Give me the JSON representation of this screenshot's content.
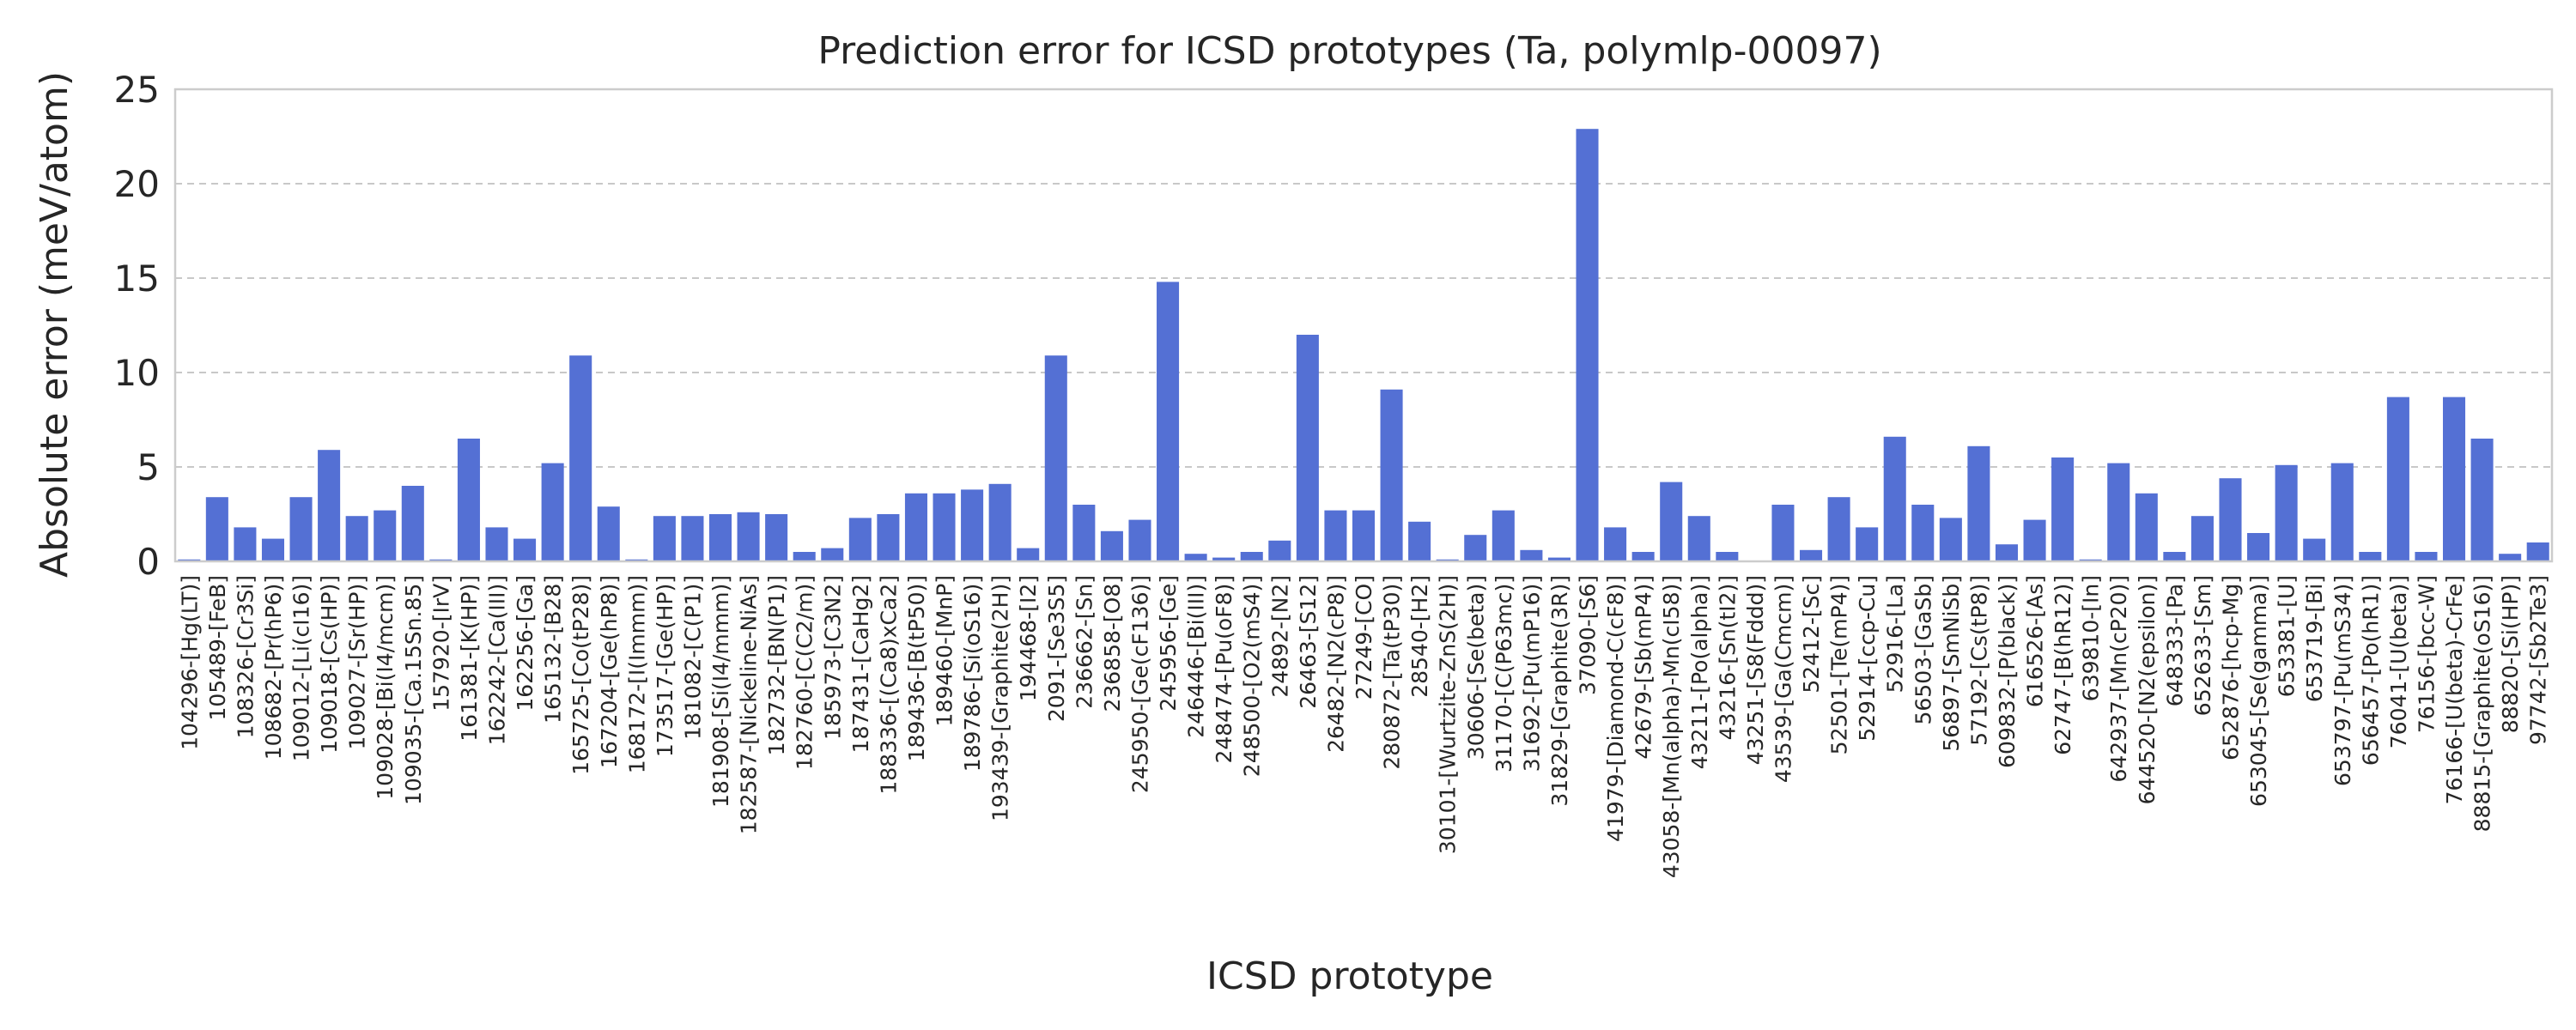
{
  "chart_data": {
    "type": "bar",
    "title": "Prediction error for ICSD prototypes (Ta, polymlp-00097)",
    "xlabel": "ICSD prototype",
    "ylabel": "Absolute error (meV/atom)",
    "ylim": [
      0,
      25
    ],
    "yticks": [
      0,
      5,
      10,
      15,
      20,
      25
    ],
    "grid": "y-dashed",
    "bar_color": "#5470d4",
    "grid_color": "#c8c8c8",
    "axes_color": "#cccccc",
    "text_color": "#262626",
    "categories": [
      "104296-[Hg(LT)]",
      "105489-[FeB]",
      "108326-[Cr3Si]",
      "108682-[Pr(hP6)]",
      "109012-[Li(cI16)]",
      "109018-[Cs(HP)]",
      "109027-[Sr(HP)]",
      "109028-[Bi(I4/mcm)]",
      "109035-[Ca.15Sn.85]",
      "157920-[IrV]",
      "161381-[K(HP)]",
      "162242-[Ca(III)]",
      "162256-[Ga]",
      "165132-[B28]",
      "165725-[Co(tP28)]",
      "167204-[Ge(hP8)]",
      "168172-[I(Immm)]",
      "173517-[Ge(HP)]",
      "181082-[C(P1)]",
      "181908-[Si(I4/mmm)]",
      "182587-[Nickeline-NiAs]",
      "182732-[BN(P1)]",
      "182760-[C(C2/m)]",
      "185973-[C3N2]",
      "187431-[CaHg2]",
      "188336-[(Ca8)xCa2]",
      "189436-[B(tP50)]",
      "189460-[MnP]",
      "189786-[Si(oS16)]",
      "193439-[Graphite(2H)]",
      "194468-[I2]",
      "2091-[Se3S5]",
      "236662-[Sn]",
      "236858-[O8]",
      "245950-[Ge(cF136)]",
      "245956-[Ge]",
      "246446-[Bi(III)]",
      "248474-[Pu(oF8)]",
      "248500-[O2(mS4)]",
      "24892-[N2]",
      "26463-[S12]",
      "26482-[N2(cP8)]",
      "27249-[CO]",
      "280872-[Ta(tP30)]",
      "28540-[H2]",
      "30101-[Wurtzite-ZnS(2H)]",
      "30606-[Se(beta)]",
      "31170-[C(P63mc)]",
      "31692-[Pu(mP16)]",
      "31829-[Graphite(3R)]",
      "37090-[S6]",
      "41979-[Diamond-C(cF8)]",
      "42679-[Sb(mP4)]",
      "43058-[Mn(alpha)-Mn(cI58)]",
      "43211-[Po(alpha)]",
      "43216-[Sn(tI2)]",
      "43251-[S8(Fddd)]",
      "43539-[Ga(Cmcm)]",
      "52412-[Sc]",
      "52501-[Te(mP4)]",
      "52914-[ccp-Cu]",
      "52916-[La]",
      "56503-[GaSb]",
      "56897-[SmNiSb]",
      "57192-[Cs(tP8)]",
      "609832-[P(black)]",
      "616526-[As]",
      "62747-[B(hR12)]",
      "639810-[In]",
      "642937-[Mn(cP20)]",
      "644520-[N2(epsilon)]",
      "648333-[Pa]",
      "652633-[Sm]",
      "652876-[hcp-Mg]",
      "653045-[Se(gamma)]",
      "653381-[U]",
      "653719-[Bi]",
      "653797-[Pu(mS34)]",
      "656457-[Po(hR1)]",
      "76041-[U(beta)]",
      "76156-[bcc-W]",
      "76166-[U(beta)-CrFe]",
      "88815-[Graphite(oS16)]",
      "88820-[Si(HP)]",
      "97742-[Sb2Te3]"
    ],
    "values": [
      0.1,
      3.4,
      1.8,
      1.2,
      3.4,
      5.9,
      2.4,
      2.7,
      4.0,
      0.1,
      6.5,
      1.8,
      1.2,
      5.2,
      10.9,
      2.9,
      0.1,
      2.4,
      2.4,
      2.5,
      2.6,
      2.5,
      0.5,
      0.7,
      2.3,
      2.5,
      3.6,
      3.6,
      3.8,
      4.1,
      0.7,
      10.9,
      3.0,
      1.6,
      2.2,
      14.8,
      0.4,
      0.2,
      0.5,
      1.1,
      12.0,
      2.7,
      2.7,
      9.1,
      2.1,
      0.1,
      1.4,
      2.7,
      0.6,
      0.2,
      22.9,
      1.8,
      0.5,
      4.2,
      2.4,
      0.5,
      0.0,
      3.0,
      0.6,
      3.4,
      1.8,
      6.6,
      3.0,
      2.3,
      6.1,
      0.9,
      2.2,
      5.5,
      0.1,
      5.2,
      3.6,
      0.5,
      2.4,
      4.4,
      1.5,
      5.1,
      1.2,
      5.2,
      0.5,
      8.7,
      0.5,
      8.7,
      6.5,
      0.4,
      1.0
    ]
  }
}
